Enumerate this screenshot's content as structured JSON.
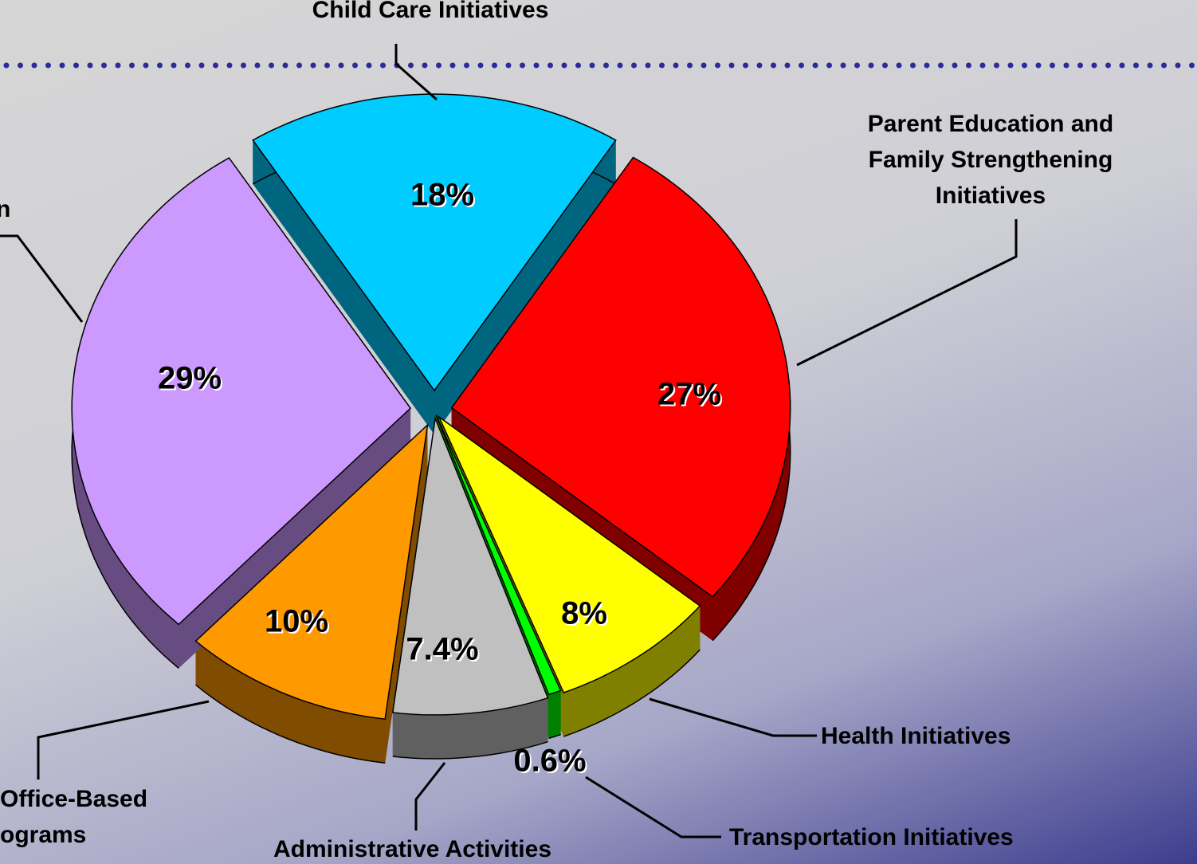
{
  "chart_data": {
    "type": "pie",
    "title": "Child Care Initiatives",
    "categories": [
      "Child Care Initiatives",
      "Parent Education and Family Strengthening Initiatives",
      "Health Initiatives",
      "Transportation Initiatives",
      "Administrative Activities",
      "Office-Based ograms",
      "n"
    ],
    "values": [
      18,
      27,
      8,
      0.6,
      7.4,
      10,
      29
    ],
    "value_labels": [
      "18%",
      "27%",
      "8%",
      "0.6%",
      "7.4%",
      "10%",
      "29%"
    ],
    "colors": [
      "#00ccff",
      "#ff0000",
      "#ffff00",
      "#00ff00",
      "#c0c0c0",
      "#ff9900",
      "#cc99ff"
    ],
    "side_colors": [
      "#006680",
      "#800000",
      "#808000",
      "#008000",
      "#606060",
      "#804c00",
      "#664c80"
    ]
  }
}
